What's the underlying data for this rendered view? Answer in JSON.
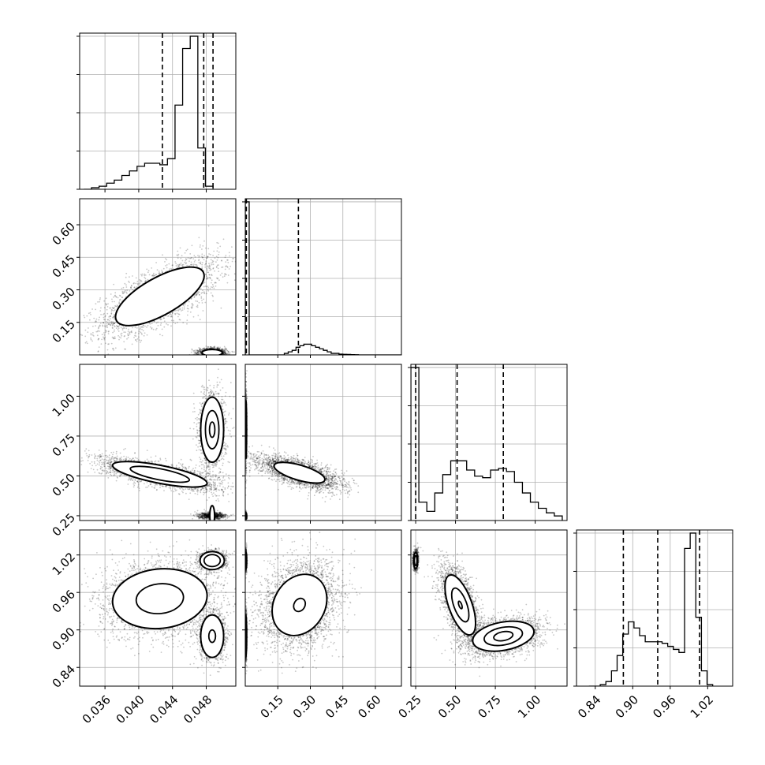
{
  "chart_data": {
    "type": "corner",
    "grid": true,
    "parameters": [
      {
        "range": [
          0.033,
          0.0515
        ],
        "ticks": [
          0.036,
          0.04,
          0.044,
          0.048
        ],
        "tick_labels": [
          "0.036",
          "0.040",
          "0.044",
          "0.048"
        ],
        "quantiles": [
          0.0428,
          0.0477,
          0.0488
        ]
      },
      {
        "range": [
          0.0,
          0.72
        ],
        "ticks": [
          0.15,
          0.3,
          0.45,
          0.6
        ],
        "tick_labels": [
          "0.15",
          "0.30",
          "0.45",
          "0.60"
        ],
        "quantiles": [
          0.005,
          0.245
        ]
      },
      {
        "range": [
          0.22,
          1.2
        ],
        "ticks": [
          0.25,
          0.5,
          0.75,
          1.0
        ],
        "tick_labels": [
          "0.25",
          "0.50",
          "0.75",
          "1.00"
        ],
        "quantiles": [
          0.25,
          0.51,
          0.8
        ]
      },
      {
        "range": [
          0.81,
          1.06
        ],
        "ticks": [
          0.84,
          0.9,
          0.96,
          1.02
        ],
        "tick_labels": [
          "0.84",
          "0.90",
          "0.96",
          "1.02"
        ],
        "quantiles": [
          0.885,
          0.94,
          1.007
        ]
      }
    ],
    "histograms": [
      {
        "param": 0,
        "edges_start": 0.0335,
        "bin_width": 0.0009,
        "counts": [
          0,
          1,
          2,
          4,
          6,
          9,
          12,
          15,
          17,
          17,
          16,
          20,
          55,
          92,
          100,
          27,
          2
        ]
      },
      {
        "param": 1,
        "edges_start": 0.0,
        "bin_width": 0.018,
        "counts": [
          100,
          0,
          0,
          0,
          0,
          0,
          0,
          0,
          0,
          0,
          1,
          2,
          3,
          5,
          6,
          7,
          7,
          6,
          5,
          4,
          3,
          2,
          1,
          1,
          0.5,
          0.4,
          0.3,
          0.2,
          0.1,
          0,
          0,
          0,
          0,
          0,
          0,
          0,
          0,
          0,
          0,
          0
        ]
      },
      {
        "param": 2,
        "edges_start": 0.22,
        "bin_width": 0.05,
        "counts": [
          100,
          12,
          6,
          18,
          30,
          39,
          39,
          33,
          29,
          28,
          33,
          34,
          32,
          25,
          18,
          12,
          8,
          5,
          3
        ]
      },
      {
        "param": 3,
        "edges_start": 0.83,
        "bin_width": 0.009,
        "counts": [
          0,
          0,
          1,
          3,
          10,
          20,
          34,
          42,
          38,
          33,
          29,
          29,
          29,
          28,
          26,
          24,
          22,
          90,
          100,
          45,
          10,
          1
        ]
      }
    ],
    "scatter_panels": [
      {
        "row": 1,
        "col": 0,
        "modes": [
          {
            "cx": 0.0425,
            "cy": 0.27,
            "sx": 0.0035,
            "sy": 0.09,
            "rho": 0.7,
            "n": 2600
          },
          {
            "cx": 0.0487,
            "cy": 0.01,
            "sx": 0.0008,
            "sy": 0.01,
            "rho": 0,
            "n": 1600
          }
        ]
      },
      {
        "row": 2,
        "col": 0,
        "modes": [
          {
            "cx": 0.0425,
            "cy": 0.51,
            "sx": 0.0035,
            "sy": 0.05,
            "rho": -0.7,
            "n": 2600
          },
          {
            "cx": 0.0487,
            "cy": 0.79,
            "sx": 0.0008,
            "sy": 0.12,
            "rho": 0,
            "n": 1400
          },
          {
            "cx": 0.0487,
            "cy": 0.25,
            "sx": 0.0008,
            "sy": 0.01,
            "rho": 0,
            "n": 900
          }
        ]
      },
      {
        "row": 3,
        "col": 0,
        "modes": [
          {
            "cx": 0.0425,
            "cy": 0.95,
            "sx": 0.0035,
            "sy": 0.03,
            "rho": 0.1,
            "n": 2600
          },
          {
            "cx": 0.0487,
            "cy": 0.89,
            "sx": 0.0008,
            "sy": 0.02,
            "rho": 0,
            "n": 1400
          },
          {
            "cx": 0.0487,
            "cy": 1.011,
            "sx": 0.0008,
            "sy": 0.008,
            "rho": 0,
            "n": 1000
          }
        ]
      },
      {
        "row": 2,
        "col": 1,
        "modes": [
          {
            "cx": 0.25,
            "cy": 0.52,
            "sx": 0.09,
            "sy": 0.05,
            "rho": -0.65,
            "n": 3000
          },
          {
            "cx": 0.003,
            "cy": 0.79,
            "sx": 0.002,
            "sy": 0.12,
            "rho": 0,
            "n": 900
          },
          {
            "cx": 0.003,
            "cy": 0.25,
            "sx": 0.002,
            "sy": 0.01,
            "rho": 0,
            "n": 700
          }
        ]
      },
      {
        "row": 3,
        "col": 1,
        "modes": [
          {
            "cx": 0.25,
            "cy": 0.94,
            "sx": 0.09,
            "sy": 0.035,
            "rho": 0.2,
            "n": 3000
          },
          {
            "cx": 0.003,
            "cy": 0.89,
            "sx": 0.002,
            "sy": 0.02,
            "rho": 0,
            "n": 800
          },
          {
            "cx": 0.003,
            "cy": 1.011,
            "sx": 0.002,
            "sy": 0.008,
            "rho": 0,
            "n": 700
          }
        ]
      },
      {
        "row": 3,
        "col": 2,
        "modes": [
          {
            "cx": 0.53,
            "cy": 0.94,
            "sx": 0.06,
            "sy": 0.03,
            "rho": -0.6,
            "n": 2600
          },
          {
            "cx": 0.8,
            "cy": 0.89,
            "sx": 0.12,
            "sy": 0.015,
            "rho": 0.3,
            "n": 2400
          },
          {
            "cx": 0.25,
            "cy": 1.011,
            "sx": 0.008,
            "sy": 0.008,
            "rho": 0,
            "n": 900
          }
        ]
      }
    ],
    "contours": [
      {
        "row": 1,
        "col": 0,
        "cx": 0.0425,
        "cy": 0.27,
        "rx": 0.0035,
        "ry": 0.09,
        "rho": 0.7,
        "levels": [
          1.5
        ]
      },
      {
        "row": 1,
        "col": 0,
        "cx": 0.0487,
        "cy": 0.01,
        "rx": 0.0008,
        "ry": 0.01,
        "rho": 0,
        "levels": [
          1.5
        ]
      },
      {
        "row": 2,
        "col": 0,
        "cx": 0.0425,
        "cy": 0.51,
        "rx": 0.0035,
        "ry": 0.05,
        "rho": -0.7,
        "levels": [
          1.6,
          1.0
        ]
      },
      {
        "row": 2,
        "col": 0,
        "cx": 0.0487,
        "cy": 0.79,
        "rx": 0.0008,
        "ry": 0.12,
        "rho": 0,
        "levels": [
          1.7,
          1.0,
          0.4
        ]
      },
      {
        "row": 2,
        "col": 0,
        "cx": 0.0487,
        "cy": 0.25,
        "rx": 0.0008,
        "ry": 0.01,
        "rho": 0,
        "levels": [
          1.5
        ]
      },
      {
        "row": 3,
        "col": 0,
        "cx": 0.0425,
        "cy": 0.95,
        "rx": 0.0035,
        "ry": 0.03,
        "rho": 0.1,
        "levels": [
          1.6,
          0.8
        ]
      },
      {
        "row": 3,
        "col": 0,
        "cx": 0.0487,
        "cy": 0.89,
        "rx": 0.0008,
        "ry": 0.02,
        "rho": 0,
        "levels": [
          1.7,
          0.5
        ]
      },
      {
        "row": 3,
        "col": 0,
        "cx": 0.0487,
        "cy": 1.011,
        "rx": 0.0008,
        "ry": 0.008,
        "rho": 0,
        "levels": [
          1.8,
          1.2
        ]
      },
      {
        "row": 2,
        "col": 1,
        "cx": 0.25,
        "cy": 0.52,
        "rx": 0.09,
        "ry": 0.05,
        "rho": -0.65,
        "levels": [
          1.3
        ]
      },
      {
        "row": 2,
        "col": 1,
        "cx": 0.003,
        "cy": 0.79,
        "rx": 0.002,
        "ry": 0.12,
        "rho": 0,
        "levels": [
          1.5
        ]
      },
      {
        "row": 2,
        "col": 1,
        "cx": 0.003,
        "cy": 0.25,
        "rx": 0.002,
        "ry": 0.01,
        "rho": 0,
        "levels": [
          1.5
        ]
      },
      {
        "row": 3,
        "col": 1,
        "cx": 0.25,
        "cy": 0.94,
        "rx": 0.09,
        "ry": 0.035,
        "rho": 0.2,
        "levels": [
          1.4,
          0.3
        ]
      },
      {
        "row": 3,
        "col": 1,
        "cx": 0.003,
        "cy": 0.89,
        "rx": 0.002,
        "ry": 0.02,
        "rho": 0,
        "levels": [
          1.7,
          1.0
        ]
      },
      {
        "row": 3,
        "col": 1,
        "cx": 0.003,
        "cy": 1.011,
        "rx": 0.002,
        "ry": 0.008,
        "rho": 0,
        "levels": [
          1.7,
          1.0
        ]
      },
      {
        "row": 3,
        "col": 2,
        "cx": 0.53,
        "cy": 0.94,
        "rx": 0.06,
        "ry": 0.03,
        "rho": -0.6,
        "levels": [
          1.6,
          0.9,
          0.2
        ]
      },
      {
        "row": 3,
        "col": 2,
        "cx": 0.8,
        "cy": 0.89,
        "rx": 0.12,
        "ry": 0.015,
        "rho": 0.3,
        "levels": [
          1.6,
          1.0,
          0.5
        ]
      },
      {
        "row": 3,
        "col": 2,
        "cx": 0.25,
        "cy": 1.011,
        "rx": 0.008,
        "ry": 0.008,
        "rho": 0,
        "levels": [
          1.6,
          1.0
        ]
      }
    ],
    "colors": {
      "points": "#000000",
      "contour_fill": "#ffffff",
      "grid": "#b0b0b0"
    }
  }
}
